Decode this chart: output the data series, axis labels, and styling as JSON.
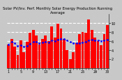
{
  "title": "Solar PV/Inv. Perf. Monthly Solar Energy Production Running Average",
  "bar_values": [
    5.2,
    6.5,
    4.8,
    2.8,
    6.2,
    3.5,
    5.8,
    7.8,
    8.5,
    7.2,
    5.2,
    6.5,
    7.2,
    6.0,
    9.2,
    6.8,
    9.8,
    8.8,
    6.5,
    4.0,
    2.0,
    3.5,
    5.5,
    7.5,
    8.0,
    7.8,
    10.8,
    8.5,
    6.8,
    6.0,
    5.0,
    7.5,
    9.5
  ],
  "running_avg": [
    5.2,
    5.85,
    5.5,
    4.83,
    5.1,
    4.67,
    4.9,
    5.35,
    5.78,
    5.82,
    5.55,
    5.63,
    5.75,
    5.7,
    6.07,
    5.98,
    6.35,
    6.5,
    6.37,
    6.08,
    5.76,
    5.5,
    5.45,
    5.57,
    5.7,
    5.8,
    6.12,
    6.25,
    6.17,
    6.1,
    6.0,
    6.1,
    6.3
  ],
  "bar_color": "#FF0000",
  "avg_color": "#0000FF",
  "bg_color": "#C8C8C8",
  "plot_bg": "#C8C8C8",
  "grid_color": "#FFFFFF",
  "ylim": [
    0,
    12
  ],
  "yticks": [
    2,
    4,
    6,
    8,
    10
  ],
  "ytick_labels": [
    "2",
    "4",
    "6",
    "8",
    "10"
  ],
  "n_bars": 33,
  "title_fontsize": 3.8,
  "tick_fontsize": 3.5,
  "title_color": "#000000"
}
